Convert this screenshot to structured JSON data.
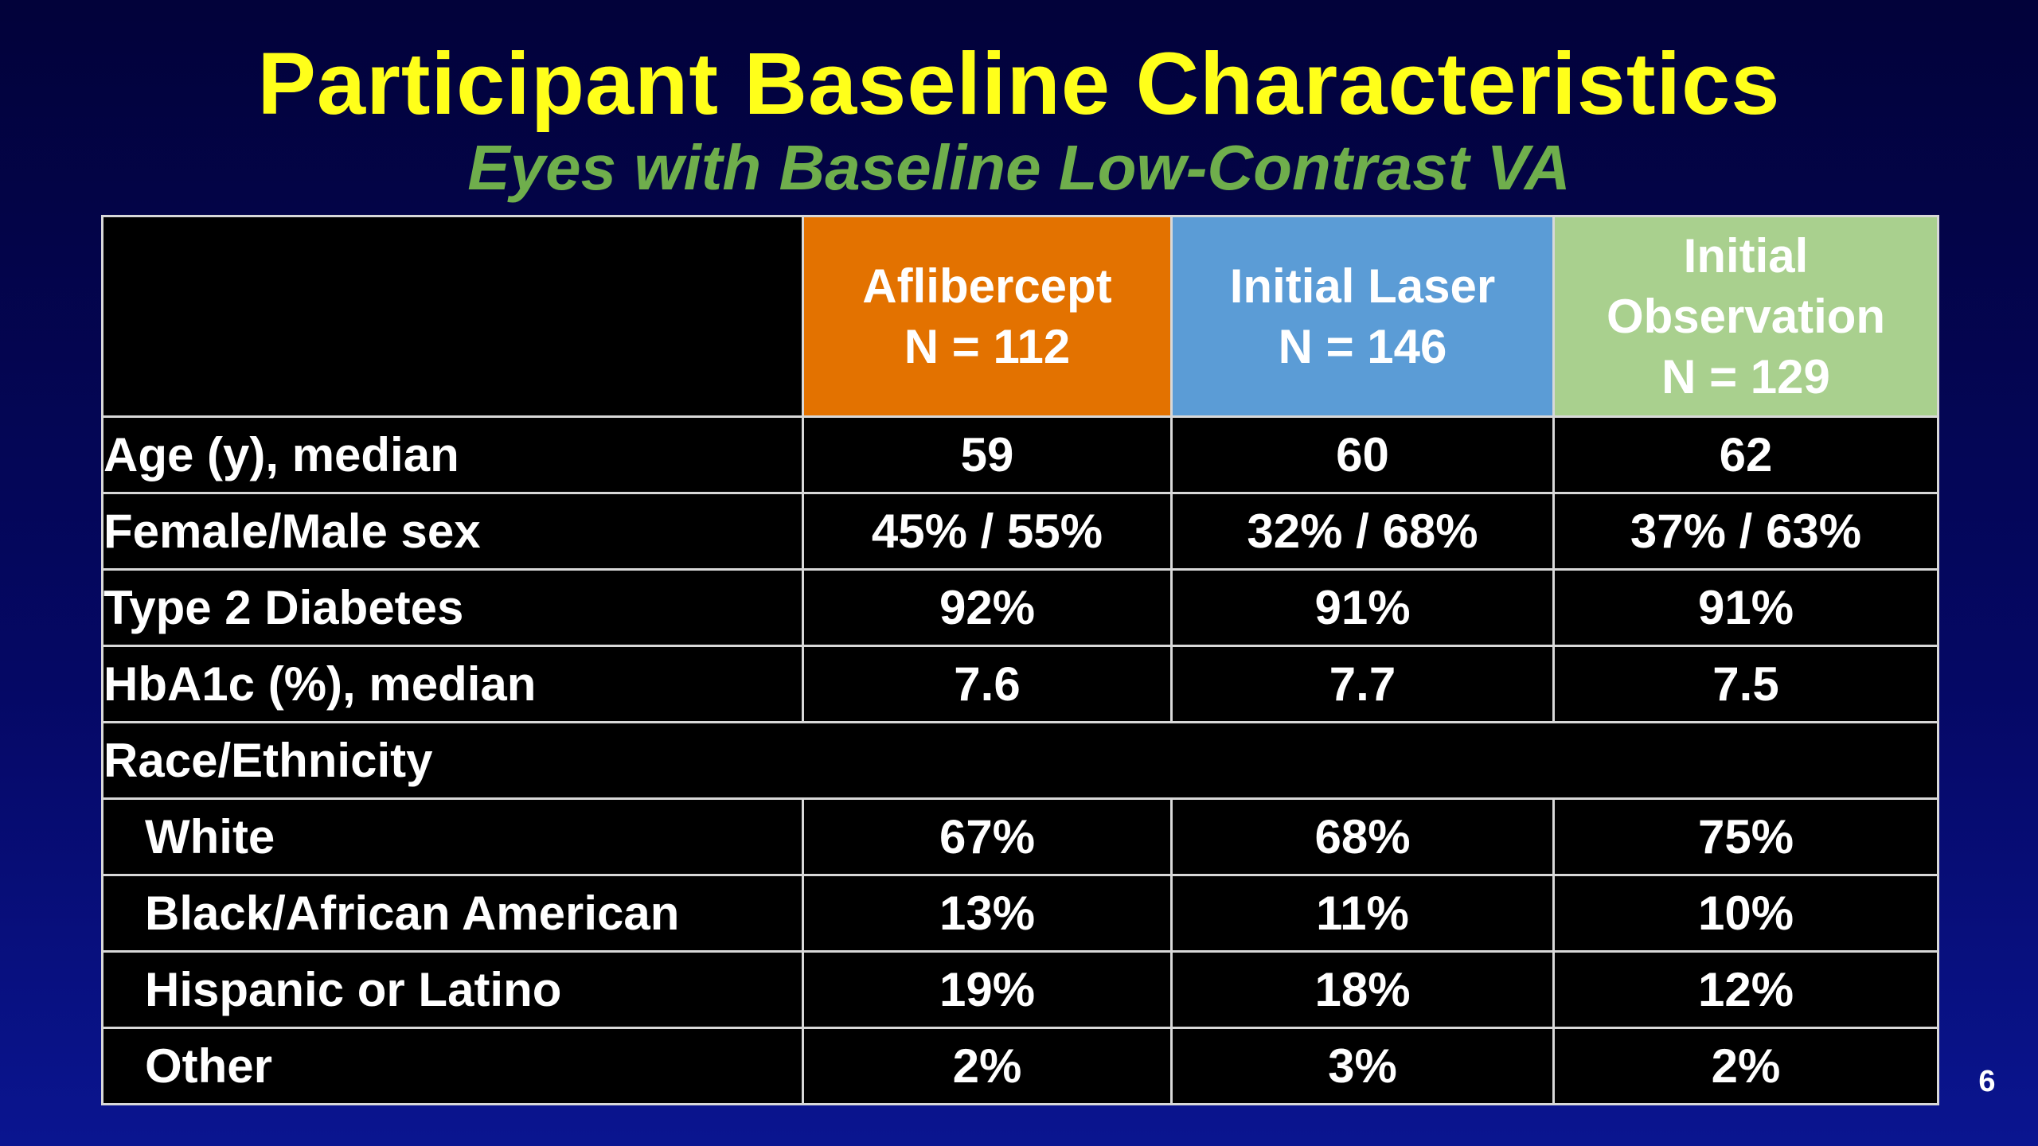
{
  "slide": {
    "title": "Participant Baseline Characteristics",
    "subtitle": "Eyes with Baseline Low-Contrast VA",
    "page_number": "6"
  },
  "table": {
    "columns": [
      {
        "line1": "Aflibercept",
        "line2": "N = 112",
        "line3": ""
      },
      {
        "line1": "Initial Laser",
        "line2": "N = 146",
        "line3": ""
      },
      {
        "line1": "Initial",
        "line2": "Observation",
        "line3": "N = 129"
      }
    ],
    "rows": [
      {
        "label": "Age (y), median",
        "values": [
          "59",
          "60",
          "62"
        ]
      },
      {
        "label": "Female/Male sex",
        "values": [
          "45% / 55%",
          "32% / 68%",
          "37% / 63%"
        ]
      },
      {
        "label": "Type 2 Diabetes",
        "values": [
          "92%",
          "91%",
          "91%"
        ]
      },
      {
        "label": "HbA1c (%), median",
        "values": [
          "7.6",
          "7.7",
          "7.5"
        ]
      }
    ],
    "group_label": "Race/Ethnicity",
    "subrows": [
      {
        "label": "White",
        "values": [
          "67%",
          "68%",
          "75%"
        ]
      },
      {
        "label": "Black/African American",
        "values": [
          "13%",
          "11%",
          "10%"
        ]
      },
      {
        "label": "Hispanic or Latino",
        "values": [
          "19%",
          "18%",
          "12%"
        ]
      },
      {
        "label": "Other",
        "values": [
          "2%",
          "3%",
          "2%"
        ]
      }
    ]
  },
  "colors": {
    "title": "#ffff1a",
    "subtitle": "#6fae4c",
    "aflibercept_header": "#e37200",
    "laser_header": "#5b9cd6",
    "observation_header": "#a9d08e"
  }
}
